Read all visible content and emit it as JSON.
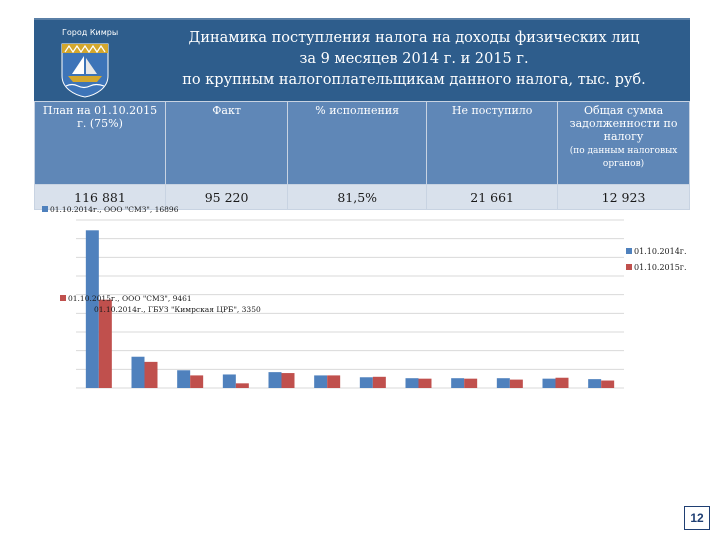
{
  "header": {
    "city_label": "Город Кимры",
    "title_lines": [
      "Динамика поступления налога на доходы физических лиц",
      "за 9 месяцев 2014 г. и 2015 г.",
      "по крупным налогоплательщикам данного налога, тыс. руб."
    ]
  },
  "table": {
    "headers": [
      "План на 01.10.2015 г. (75%)",
      "Факт",
      "% исполнения",
      "Не поступило",
      "Общая сумма задолженности по налогу"
    ],
    "debt_note": "(по данным налоговых органов)",
    "values": [
      "116 881",
      "95 220",
      "81,5%",
      "21 661",
      "12 923"
    ]
  },
  "chart_data": {
    "type": "bar",
    "series": [
      {
        "name": "01.10.2014г.",
        "color": "#4f81bd",
        "values": [
          16896,
          3350,
          1900,
          1450,
          1700,
          1350,
          1150,
          1050,
          1050,
          1050,
          1000,
          950
        ],
        "labels": [
          "01.10.2014г., ООО \"СМЗ\", 16896",
          "01.10.2014г., ГБУЗ \"Кимрская ЦРБ\", 3350"
        ]
      },
      {
        "name": "01.10.2015г.",
        "color": "#c0504d",
        "values": [
          9461,
          2800,
          1350,
          500,
          1600,
          1350,
          1200,
          1000,
          1000,
          900,
          1100,
          800
        ],
        "labels": [
          "01.10.2015г., ООО \"СМЗ\", 9461"
        ]
      }
    ],
    "ylim": [
      0,
      18000
    ],
    "grid": true,
    "legend": "right"
  },
  "page_number": "12"
}
